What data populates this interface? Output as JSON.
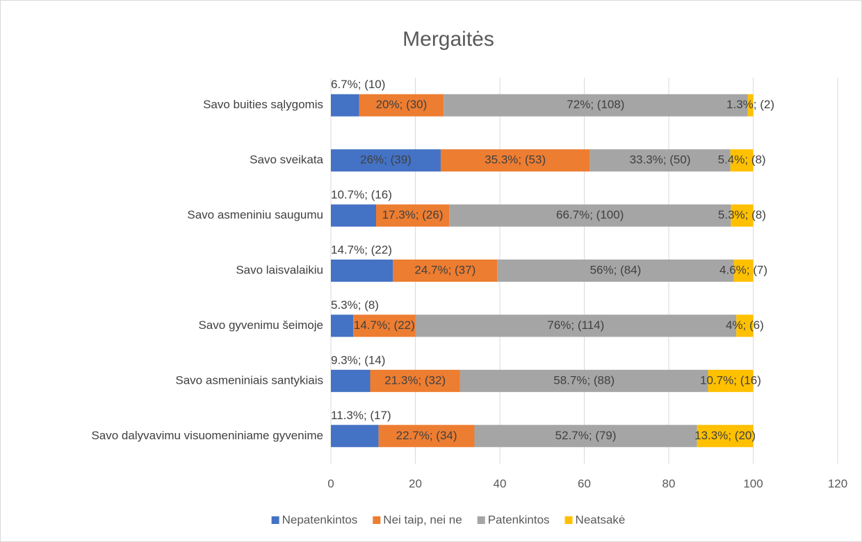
{
  "chart_data": {
    "type": "stacked_barh",
    "title": "Mergaitės",
    "categories": [
      "Savo buities sąlygomis",
      "Savo sveikata",
      "Savo asmeniniu saugumu",
      "Savo laisvalaikiu",
      "Savo gyvenimu šeimoje",
      "Savo asmeniniais santykiais",
      "Savo dalyvavimu visuomeniniame gyvenime"
    ],
    "series": [
      {
        "name": "Nepatenkintos",
        "color": "#4472c4",
        "values": [
          6.7,
          26,
          10.7,
          14.7,
          5.3,
          9.3,
          11.3
        ],
        "value_labels": [
          "6.7%; (10)",
          "26%; (39)",
          "10.7%; (16)",
          "14.7%; (22)",
          "5.3%; (8)",
          "9.3%; (14)",
          "11.3%; (17)"
        ]
      },
      {
        "name": "Nei taip, nei ne",
        "color": "#ed7d31",
        "values": [
          20,
          35.3,
          17.3,
          24.7,
          14.7,
          21.3,
          22.7
        ],
        "value_labels": [
          "20%; (30)",
          "35.3%; (53)",
          "17.3%; (26)",
          "24.7%; (37)",
          "14.7%; (22)",
          "21.3%; (32)",
          "22.7%; (34)"
        ]
      },
      {
        "name": "Patenkintos",
        "color": "#a5a5a5",
        "values": [
          72,
          33.3,
          66.7,
          56,
          76,
          58.7,
          52.7
        ],
        "value_labels": [
          "72%; (108)",
          "33.3%; (50)",
          "66.7%; (100)",
          "56%; (84)",
          "76%; (114)",
          "58.7%; (88)",
          "52.7%; (79)"
        ]
      },
      {
        "name": "Neatsakė",
        "color": "#ffc000",
        "values": [
          1.3,
          5.4,
          5.3,
          4.6,
          4,
          10.7,
          13.3
        ],
        "value_labels": [
          "1.3%; (2)",
          "5.4%; (8)",
          "5.3%; (8)",
          "4.6%; (7)",
          "4%; (6)",
          "10.7%; (16)",
          "13.3%; (20)"
        ]
      }
    ],
    "xlim": [
      0,
      120
    ],
    "xticks": [
      0,
      20,
      40,
      60,
      80,
      100,
      120
    ],
    "grid": true,
    "legend": "bottom"
  }
}
